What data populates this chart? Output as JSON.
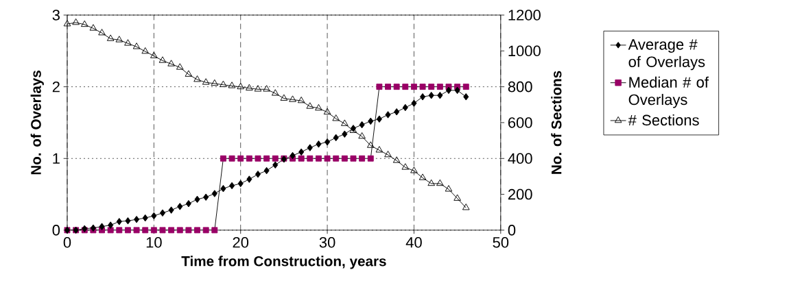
{
  "chart_data": {
    "type": "line",
    "xlabel": "Time from Construction, years",
    "ylabel": "No. of Overlays",
    "y2label": "No. of Sections",
    "x": [
      0,
      1,
      2,
      3,
      4,
      5,
      6,
      7,
      8,
      9,
      10,
      11,
      12,
      13,
      14,
      15,
      16,
      17,
      18,
      19,
      20,
      21,
      22,
      23,
      24,
      25,
      26,
      27,
      28,
      29,
      30,
      31,
      32,
      33,
      34,
      35,
      36,
      37,
      38,
      39,
      40,
      41,
      42,
      43,
      44,
      45,
      46
    ],
    "series": [
      {
        "name": "Average # of Overlays",
        "color": "#000000",
        "marker": "diamond",
        "values": [
          0,
          0,
          0.02,
          0.03,
          0.05,
          0.07,
          0.12,
          0.13,
          0.15,
          0.17,
          0.2,
          0.24,
          0.28,
          0.33,
          0.37,
          0.43,
          0.46,
          0.51,
          0.58,
          0.62,
          0.65,
          0.71,
          0.78,
          0.83,
          0.91,
          0.99,
          1.04,
          1.09,
          1.15,
          1.2,
          1.23,
          1.29,
          1.34,
          1.42,
          1.47,
          1.52,
          1.55,
          1.61,
          1.65,
          1.71,
          1.77,
          1.86,
          1.88,
          1.88,
          1.95,
          1.95,
          1.86
        ]
      },
      {
        "name": "Median # of Overlays",
        "color": "#990066",
        "marker": "square",
        "values": [
          0,
          0,
          0,
          0,
          0,
          0,
          0,
          0,
          0,
          0,
          0,
          0,
          0,
          0,
          0,
          0,
          0,
          0,
          1,
          1,
          1,
          1,
          1,
          1,
          1,
          1,
          1,
          1,
          1,
          1,
          1,
          1,
          1,
          1,
          1,
          1,
          2,
          2,
          2,
          2,
          2,
          2,
          2,
          2,
          2,
          2,
          2
        ]
      },
      {
        "name": "# Sections",
        "color": "#000000",
        "marker": "triangle",
        "axis": "y2",
        "values": [
          1150,
          1158,
          1147,
          1126,
          1100,
          1068,
          1061,
          1042,
          1023,
          997,
          972,
          946,
          927,
          908,
          869,
          840,
          824,
          818,
          811,
          805,
          799,
          792,
          786,
          786,
          763,
          735,
          728,
          722,
          690,
          680,
          658,
          622,
          594,
          555,
          523,
          472,
          446,
          420,
          388,
          350,
          331,
          292,
          260,
          260,
          228,
          177,
          125
        ]
      }
    ],
    "xlim": [
      0,
      50
    ],
    "xticks": [
      0,
      10,
      20,
      30,
      40,
      50
    ],
    "ylim": [
      0,
      3
    ],
    "yticks": [
      0,
      1,
      2,
      3
    ],
    "y2lim": [
      0,
      1200
    ],
    "y2ticks": [
      0,
      200,
      400,
      600,
      800,
      1000,
      1200
    ],
    "grid": true,
    "legend": "right"
  }
}
